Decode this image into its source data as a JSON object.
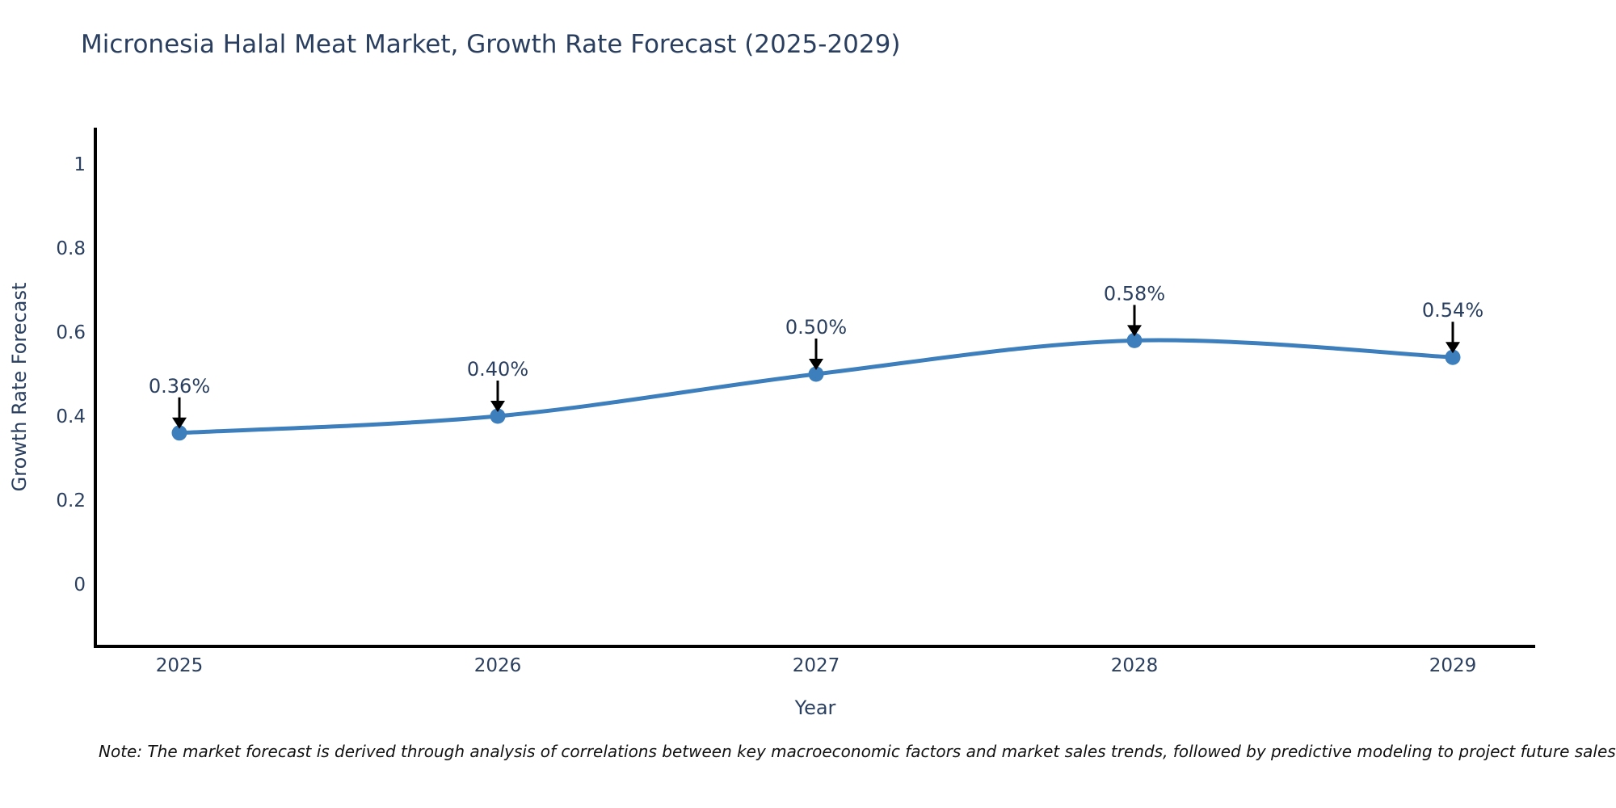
{
  "chart_data": {
    "type": "line",
    "title": "Micronesia Halal Meat Market, Growth Rate Forecast (2025-2029)",
    "xlabel": "Year",
    "ylabel": "Growth Rate Forecast",
    "categories": [
      "2025",
      "2026",
      "2027",
      "2028",
      "2029"
    ],
    "series": [
      {
        "name": "Growth Rate Forecast",
        "values": [
          0.36,
          0.4,
          0.5,
          0.58,
          0.54
        ],
        "point_labels": [
          "0.36%",
          "0.40%",
          "0.50%",
          "0.58%",
          "0.54%"
        ]
      }
    ],
    "y_ticks": [
      0,
      0.2,
      0.4,
      0.6,
      0.8,
      1
    ],
    "y_tick_labels": [
      "0",
      "0.2",
      "0.4",
      "0.6",
      "0.8",
      "1"
    ],
    "ylim": [
      -0.15,
      1.09
    ],
    "grid": false,
    "legend_position": "none",
    "line_shape": "spline",
    "colors": {
      "line": "#3d7ebc",
      "marker": "#3d7ebc",
      "axis_line": "#000000",
      "text": "#2a3f5f",
      "annotation_arrow": "#000000"
    }
  },
  "note": {
    "text": "Note: The market forecast is derived through analysis of correlations between key macroeconomic factors and market sales trends, followed by predictive modeling to project future sales"
  }
}
